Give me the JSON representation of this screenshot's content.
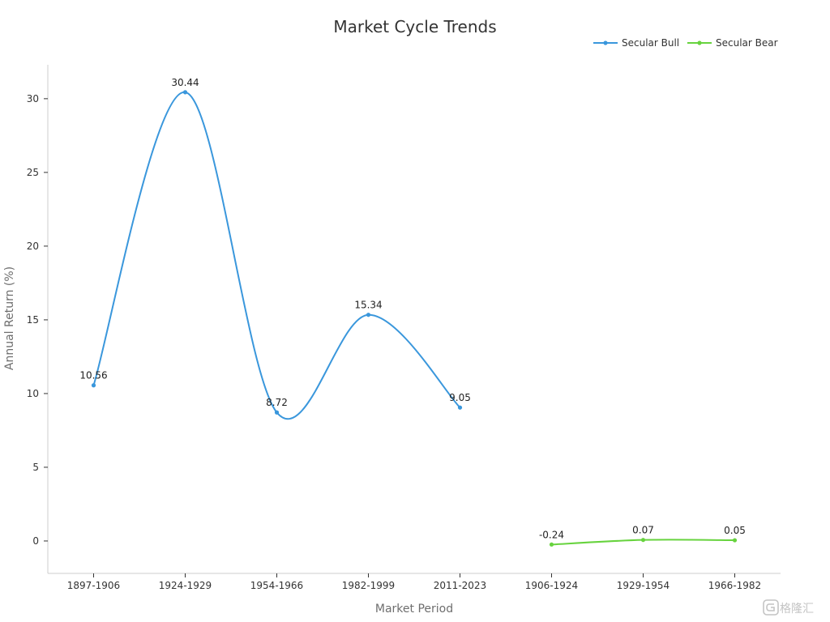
{
  "chart_data": {
    "type": "line",
    "title": "Market Cycle Trends",
    "xlabel": "Market Period",
    "ylabel": "Annual Return (%)",
    "categories": [
      "1897-1906",
      "1924-1929",
      "1954-1966",
      "1982-1999",
      "2011-2023",
      "1906-1924",
      "1929-1954",
      "1966-1982"
    ],
    "yticks": [
      0,
      5,
      10,
      15,
      20,
      25,
      30
    ],
    "ylim": [
      -2.2,
      32.3
    ],
    "legend_position": "top-right",
    "grid": false,
    "smooth": true,
    "show_data_labels": true,
    "series": [
      {
        "name": "Secular Bull",
        "color": "#3a97dc",
        "points": [
          {
            "category": "1897-1906",
            "value": 10.56
          },
          {
            "category": "1924-1929",
            "value": 30.44
          },
          {
            "category": "1954-1966",
            "value": 8.72
          },
          {
            "category": "1982-1999",
            "value": 15.34
          },
          {
            "category": "2011-2023",
            "value": 9.05
          }
        ]
      },
      {
        "name": "Secular Bear",
        "color": "#67d33e",
        "points": [
          {
            "category": "1906-1924",
            "value": -0.24
          },
          {
            "category": "1929-1954",
            "value": 0.07
          },
          {
            "category": "1966-1982",
            "value": 0.05
          }
        ]
      }
    ]
  },
  "watermark": {
    "text": "格隆汇",
    "icon": "glh-logo-icon"
  }
}
